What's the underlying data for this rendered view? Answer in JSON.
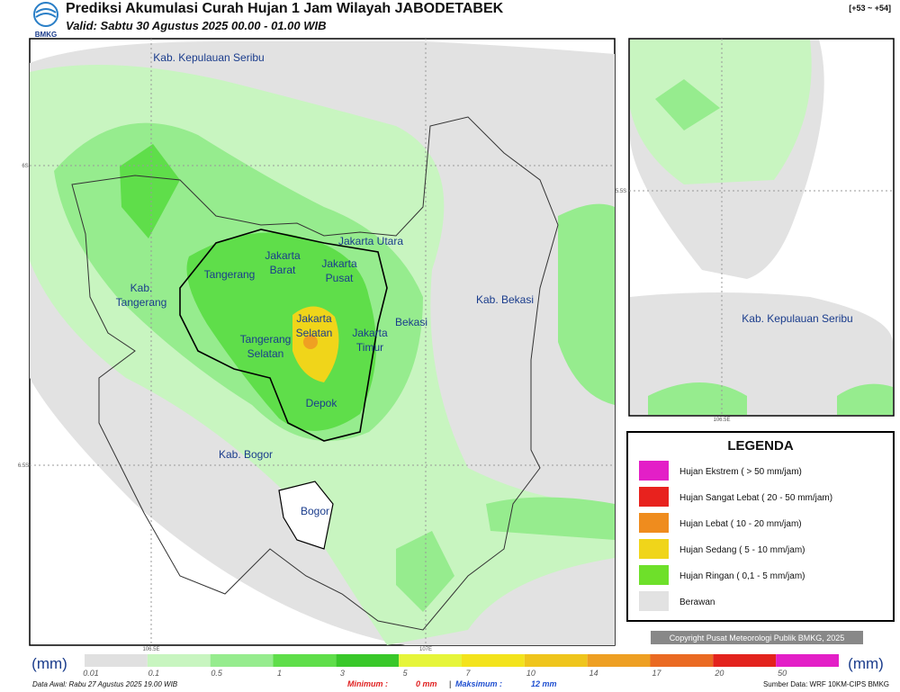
{
  "header": {
    "logo": "BMKG",
    "title": "Prediksi Akumulasi Curah Hujan 1 Jam Wilayah JABODETABEK",
    "valid": "Valid: Sabtu 30 Agustus 2025 00.00 - 01.00 WIB",
    "range": "[+53 ~ +54]"
  },
  "map": {
    "labels": [
      [
        "Kab. Kepulauan Seribu"
      ],
      [
        "Jakarta Utara"
      ],
      [
        "Jakarta",
        "Barat"
      ],
      [
        "Jakarta",
        "Pusat"
      ],
      [
        "Tangerang"
      ],
      [
        "Kab.",
        "Tangerang"
      ],
      [
        "Kab. Bekasi"
      ],
      [
        "Jakarta",
        "Selatan"
      ],
      [
        "Bekasi"
      ],
      [
        "Jakarta",
        "Timur"
      ],
      [
        "Tangerang",
        "Selatan"
      ],
      [
        "Depok"
      ],
      [
        "Kab. Bogor"
      ],
      [
        "Bogor"
      ]
    ],
    "ticks": [
      "6S",
      "6.5S",
      "106.5E",
      "107E"
    ]
  },
  "inset": {
    "labels": [
      [
        "Kab. Kepulauan Seribu"
      ]
    ],
    "ticks": [
      "5.5S",
      "106.5E"
    ]
  },
  "legend": {
    "title": "LEGENDA",
    "items": [
      {
        "label": "Hujan Ekstrem ( > 50 mm/jam)",
        "color": "#e31fc7"
      },
      {
        "label": "Hujan Sangat Lebat ( 20 - 50 mm/jam)",
        "color": "#e8221e"
      },
      {
        "label": "Hujan Lebat ( 10 - 20 mm/jam)",
        "color": "#ef8c1e"
      },
      {
        "label": "Hujan Sedang ( 5 - 10 mm/jam)",
        "color": "#f0d51a"
      },
      {
        "label": "Hujan Ringan ( 0,1 - 5 mm/jam)",
        "color": "#6ee02a"
      },
      {
        "label": "Berawan",
        "color": "#e2e2e2"
      }
    ]
  },
  "copyright": "Copyright Pusat Meteorologi Publik BMKG, 2025",
  "colorbar": {
    "unit_left": "(mm)",
    "unit_right": "(mm)",
    "ticks": [
      "0.01",
      "0.1",
      "0.5",
      "1",
      "3",
      "5",
      "7",
      "10",
      "14",
      "17",
      "20",
      "50"
    ],
    "colors": [
      "#e0e0e0",
      "#c8f5c0",
      "#96ec8e",
      "#5fde4a",
      "#39c82a",
      "#e6f53a",
      "#f3e31c",
      "#efc51c",
      "#ee9f22",
      "#ea6a22",
      "#e3231d",
      "#e31fc7"
    ]
  },
  "footer": {
    "start": "Data Awal: Rabu 27 Agustus 2025 19.00 WIB",
    "min_label": "Minimum :",
    "min_value": "0 mm",
    "separator": "|",
    "max_label": "Maksimum :",
    "max_value": "12 mm",
    "source": "Sumber Data: WRF 10KM-CIPS BMKG"
  }
}
